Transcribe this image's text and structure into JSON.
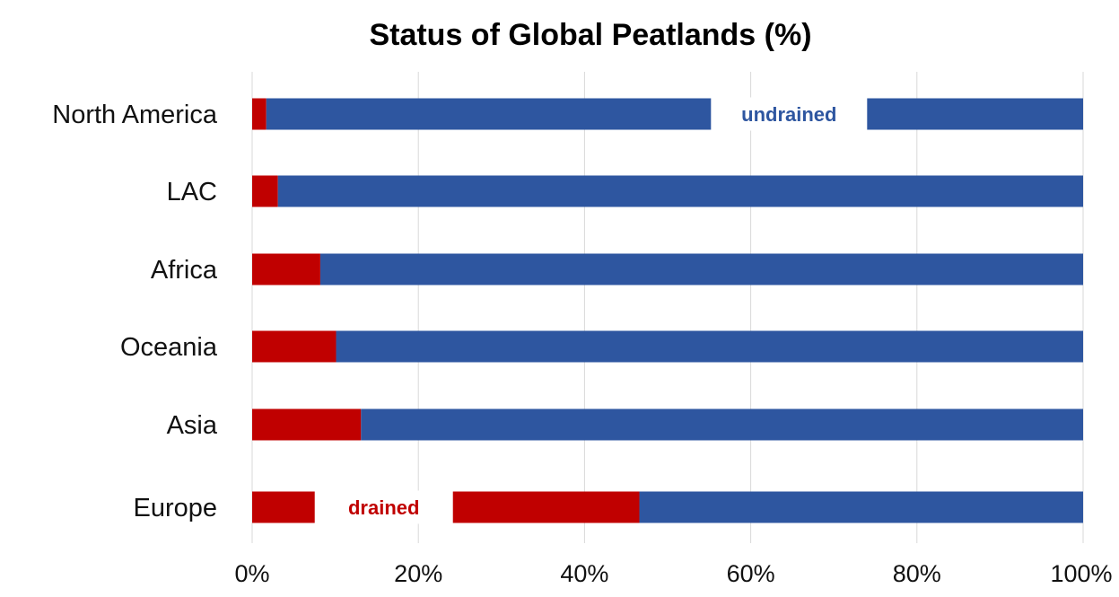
{
  "chart_data": {
    "type": "bar",
    "orientation": "horizontal",
    "stacked": true,
    "title": "Status of Global Peatlands (%)",
    "categories": [
      "North America",
      "LAC",
      "Africa",
      "Oceania",
      "Asia",
      "Europe"
    ],
    "series": [
      {
        "name": "drained",
        "color": "#c00000",
        "values": [
          1.7,
          3.1,
          8.2,
          10.1,
          13.1,
          46.6
        ]
      },
      {
        "name": "undrained",
        "color": "#2e56a0",
        "values": [
          98.3,
          96.9,
          91.8,
          89.9,
          86.9,
          53.4
        ]
      }
    ],
    "xlim": [
      0,
      100
    ],
    "x_ticks": [
      "0%",
      "20%",
      "40%",
      "60%",
      "80%",
      "100%"
    ],
    "grid": true,
    "annotations": [
      {
        "text": "undrained",
        "series": "undrained",
        "category": "North America"
      },
      {
        "text": "drained",
        "series": "drained",
        "category": "Europe"
      }
    ]
  }
}
